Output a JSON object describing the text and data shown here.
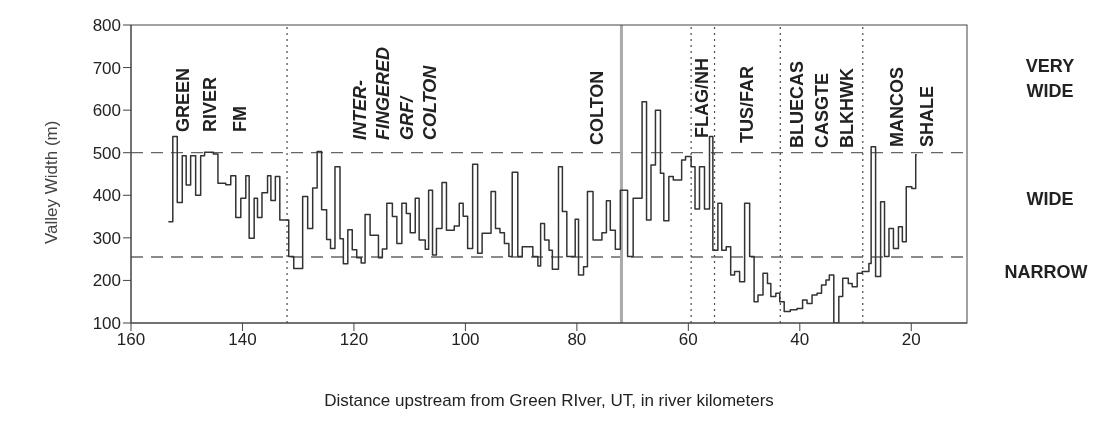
{
  "chart_data": {
    "type": "step",
    "xlabel": "Distance upstream from Green RIver, UT, in river kilometers",
    "ylabel": "Valley Width (m)",
    "xlim": [
      160,
      10
    ],
    "xticks": [
      160,
      140,
      120,
      100,
      80,
      60,
      40,
      20
    ],
    "ylim": [
      100,
      800
    ],
    "yticks": [
      100,
      200,
      300,
      400,
      500,
      600,
      700,
      800
    ],
    "grid": false,
    "legend": false,
    "marker": "none",
    "line_style": "solid",
    "series": [
      {
        "color": "#333333",
        "x": [
          153.3,
          152.5,
          151.7,
          150.8,
          150.1,
          149.3,
          148.4,
          147.5,
          146.8,
          145.2,
          144.4,
          143.0,
          142.1,
          141.2,
          140.3,
          139.4,
          138.8,
          137.9,
          137.3,
          136.5,
          135.5,
          134.9,
          134.1,
          133.3,
          131.7,
          130.8,
          129.2,
          128.3,
          127.4,
          126.6,
          125.8,
          124.9,
          124.2,
          123.4,
          122.5,
          121.9,
          121.1,
          120.3,
          119.5,
          118.7,
          118.0,
          117.1,
          115.6,
          114.9,
          114.1,
          113.1,
          112.3,
          111.4,
          110.6,
          109.9,
          109.0,
          108.3,
          107.2,
          106.6,
          105.9,
          105.2,
          104.2,
          103.4,
          102.0,
          101.1,
          100.4,
          99.6,
          98.7,
          97.8,
          97.0,
          95.4,
          94.6,
          93.8,
          93.0,
          92.2,
          91.6,
          90.6,
          89.8,
          87.9,
          87.0,
          86.5,
          85.8,
          85.0,
          84.4,
          83.3,
          82.6,
          81.8,
          80.3,
          79.7,
          78.8,
          78.1,
          77.1,
          75.5,
          74.7,
          74.0,
          73.1,
          72.2,
          70.9,
          69.9,
          68.3,
          67.5,
          66.7,
          65.9,
          65.0,
          64.4,
          63.5,
          62.7,
          61.2,
          60.5,
          59.5,
          58.8,
          58.0,
          57.1,
          56.2,
          55.6,
          54.7,
          54.0,
          53.2,
          52.4,
          51.7,
          50.8,
          49.9,
          49.0,
          48.2,
          47.5,
          46.6,
          45.8,
          45.2,
          44.3,
          43.6,
          42.8,
          41.7,
          40.5,
          39.5,
          38.7,
          37.8,
          36.9,
          36.1,
          35.3,
          34.7,
          33.9,
          33.0,
          32.3,
          31.3,
          30.6,
          29.7,
          28.8,
          27.6,
          27.2,
          26.4,
          25.5,
          24.8,
          24.0,
          23.2,
          22.3,
          21.6,
          20.9,
          19.9,
          19.2,
          19.0
        ],
        "values": [
          338,
          538,
          383,
          493,
          424,
          493,
          400,
          493,
          501,
          497,
          428,
          425,
          446,
          348,
          393,
          446,
          299,
          393,
          348,
          406,
          446,
          388,
          444,
          342,
          256,
          228,
          397,
          322,
          417,
          503,
          366,
          296,
          275,
          467,
          298,
          239,
          319,
          272,
          253,
          241,
          355,
          306,
          253,
          274,
          381,
          350,
          287,
          381,
          357,
          312,
          393,
          295,
          273,
          412,
          260,
          322,
          430,
          318,
          328,
          381,
          351,
          275,
          473,
          264,
          311,
          409,
          322,
          312,
          287,
          256,
          454,
          256,
          279,
          256,
          234,
          334,
          295,
          271,
          226,
          467,
          362,
          256,
          344,
          213,
          232,
          409,
          295,
          312,
          387,
          318,
          273,
          412,
          256,
          393,
          620,
          342,
          471,
          600,
          452,
          340,
          444,
          436,
          483,
          491,
          467,
          368,
          467,
          368,
          538,
          271,
          381,
          271,
          279,
          213,
          221,
          197,
          381,
          256,
          150,
          166,
          217,
          193,
          162,
          170,
          150,
          127,
          131,
          134,
          154,
          146,
          166,
          170,
          189,
          201,
          213,
          100,
          162,
          205,
          193,
          185,
          217,
          221,
          240,
          514,
          209,
          385,
          256,
          322,
          275,
          326,
          291,
          420,
          416,
          495,
          495
        ]
      }
    ],
    "ref_lines": [
      {
        "axis": "y",
        "value": 500,
        "color": "#666666",
        "line_style": "dashed"
      },
      {
        "axis": "y",
        "value": 255,
        "color": "#666666",
        "line_style": "dashed"
      },
      {
        "axis": "x",
        "value": 132,
        "color": "#555555",
        "line_style": "dotted"
      },
      {
        "axis": "x",
        "value": 72,
        "color": "#aaaaaa",
        "line_style": "solid"
      },
      {
        "axis": "x",
        "value": 59.5,
        "color": "#555555",
        "line_style": "dotted"
      },
      {
        "axis": "x",
        "value": 55.3,
        "color": "#555555",
        "line_style": "dotted"
      },
      {
        "axis": "x",
        "value": 43.5,
        "color": "#555555",
        "line_style": "dotted"
      },
      {
        "axis": "x",
        "value": 28.7,
        "color": "#555555",
        "line_style": "dotted"
      }
    ],
    "annotations": [
      "GREEN RIVER FM",
      "INTER- FINGERED GRF/ COLTON",
      "COLTON",
      "FLAG/NH",
      "TUS/FAR",
      "BLUECAS CASGTE BLKHWK",
      "MANCOS SHALE",
      "VERY WIDE",
      "WIDE",
      "NARROW"
    ]
  }
}
